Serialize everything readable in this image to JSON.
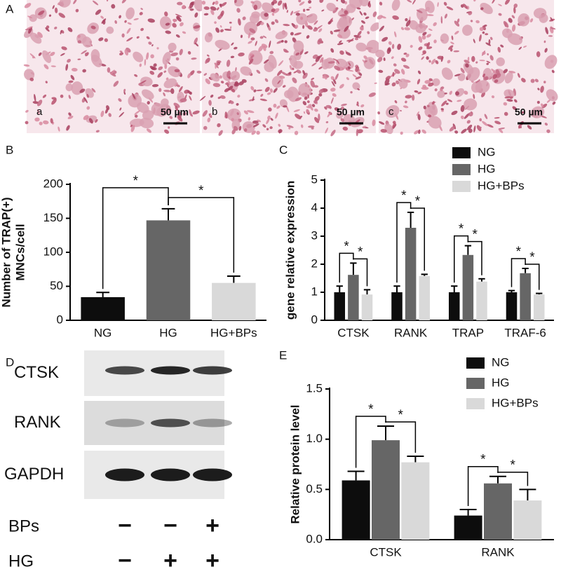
{
  "panel_a": {
    "label": "A",
    "images": [
      {
        "label": "a",
        "scale": "50 µm"
      },
      {
        "label": "b",
        "scale": "50 µm"
      },
      {
        "label": "c",
        "scale": "50 µm"
      }
    ]
  },
  "blot": {
    "label": "D",
    "rows": [
      "CTSK",
      "RANK",
      "GAPDH"
    ],
    "treatments": [
      {
        "name": "BPs",
        "signs": [
          "−",
          "−",
          "+"
        ]
      },
      {
        "name": "HG",
        "signs": [
          "−",
          "+",
          "+"
        ]
      }
    ]
  },
  "chart_data": [
    {
      "type": "bar",
      "label": "B",
      "ylabel": [
        "Number of TRAP(+)",
        "MNCs/cell"
      ],
      "categories": [
        "NG",
        "HG",
        "HG+BPs"
      ],
      "values": [
        34,
        147,
        55
      ],
      "errors": [
        7,
        17,
        10
      ],
      "colors": [
        "#0d0d0d",
        "#666666",
        "#d9d9d9"
      ],
      "ylim": [
        0,
        200
      ],
      "yticks": [
        0,
        50,
        100,
        150,
        200
      ],
      "significance": [
        {
          "from": 0,
          "to": 1,
          "label": "*"
        },
        {
          "from": 1,
          "to": 2,
          "label": "*"
        }
      ]
    },
    {
      "type": "bar",
      "label": "C",
      "ylabel": [
        "gene relative expression"
      ],
      "categories": [
        "CTSK",
        "RANK",
        "TRAP",
        "TRAF-6"
      ],
      "series": [
        {
          "name": "NG",
          "color": "#0d0d0d",
          "values": [
            1,
            1,
            1,
            1
          ],
          "errors": [
            0.22,
            0.22,
            0.22,
            0.06
          ]
        },
        {
          "name": "HG",
          "color": "#666666",
          "values": [
            1.62,
            3.3,
            2.33,
            1.68
          ],
          "errors": [
            0.42,
            0.55,
            0.33,
            0.17
          ]
        },
        {
          "name": "HG+BPs",
          "color": "#d9d9d9",
          "values": [
            0.92,
            1.58,
            1.38,
            0.92
          ],
          "errors": [
            0.17,
            0.06,
            0.1,
            0.04
          ]
        }
      ],
      "ylim": [
        0,
        5
      ],
      "yticks": [
        0,
        1,
        2,
        3,
        4,
        5
      ],
      "significance": [
        {
          "category": 0,
          "from": 0,
          "to": 1,
          "label": "*"
        },
        {
          "category": 0,
          "from": 1,
          "to": 2,
          "label": "*"
        },
        {
          "category": 1,
          "from": 0,
          "to": 1,
          "label": "*"
        },
        {
          "category": 1,
          "from": 1,
          "to": 2,
          "label": "*"
        },
        {
          "category": 2,
          "from": 0,
          "to": 1,
          "label": "*"
        },
        {
          "category": 2,
          "from": 1,
          "to": 2,
          "label": "*"
        },
        {
          "category": 3,
          "from": 0,
          "to": 1,
          "label": "*"
        },
        {
          "category": 3,
          "from": 1,
          "to": 2,
          "label": "*"
        }
      ]
    },
    {
      "type": "bar",
      "label": "E",
      "ylabel": [
        "Relative protein level"
      ],
      "categories": [
        "CTSK",
        "RANK"
      ],
      "series": [
        {
          "name": "NG",
          "color": "#0d0d0d",
          "values": [
            0.59,
            0.24
          ],
          "errors": [
            0.09,
            0.06
          ]
        },
        {
          "name": "HG",
          "color": "#666666",
          "values": [
            0.99,
            0.56
          ],
          "errors": [
            0.14,
            0.07
          ]
        },
        {
          "name": "HG+BPs",
          "color": "#d9d9d9",
          "values": [
            0.77,
            0.39
          ],
          "errors": [
            0.06,
            0.11
          ]
        }
      ],
      "ylim": [
        0,
        1.5
      ],
      "yticks": [
        {
          "value": 0,
          "label": "0.0"
        },
        {
          "value": 0.5,
          "label": "0.5"
        },
        {
          "value": 1,
          "label": "1.0"
        },
        {
          "value": 1.5,
          "label": "1.5"
        }
      ],
      "significance": [
        {
          "category": 0,
          "from": 0,
          "to": 1,
          "label": "*"
        },
        {
          "category": 0,
          "from": 1,
          "to": 2,
          "label": "*"
        },
        {
          "category": 1,
          "from": 0,
          "to": 1,
          "label": "*"
        },
        {
          "category": 1,
          "from": 1,
          "to": 2,
          "label": "*"
        }
      ]
    }
  ]
}
